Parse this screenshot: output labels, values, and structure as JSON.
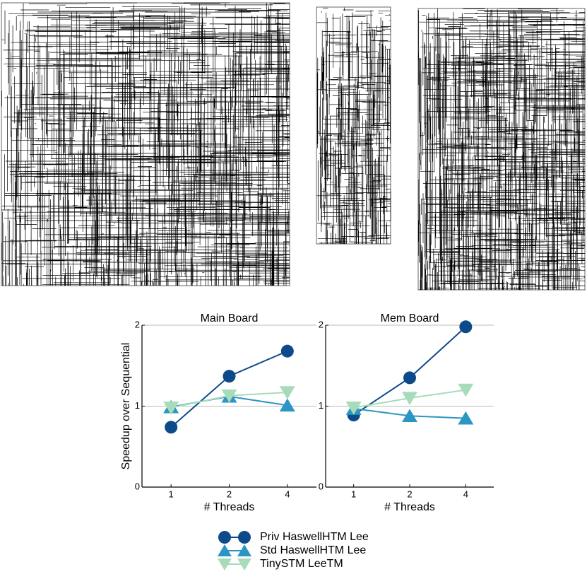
{
  "chart_data": [
    {
      "type": "line",
      "title": "Main Board",
      "x_label": "# Threads",
      "y_label": "Speedup over Sequential",
      "categories": [
        "1",
        "2",
        "4"
      ],
      "ylim": [
        0,
        2
      ],
      "yticks": [
        0,
        1,
        2
      ],
      "grid": true,
      "series": [
        {
          "name": "Priv HaswellHTM Lee",
          "color": "#0d4a8a",
          "marker": "circle",
          "values": [
            0.74,
            1.37,
            1.68
          ]
        },
        {
          "name": "Std HaswellHTM Lee",
          "color": "#2b95c4",
          "marker": "triangle-up",
          "values": [
            0.99,
            1.12,
            1.01
          ]
        },
        {
          "name": "TinySTM LeeTM",
          "color": "#a8dbb9",
          "marker": "triangle-down",
          "values": [
            0.98,
            1.13,
            1.17
          ]
        }
      ]
    },
    {
      "type": "line",
      "title": "Mem Board",
      "x_label": "# Threads",
      "categories": [
        "1",
        "2",
        "4"
      ],
      "ylim": [
        0,
        2
      ],
      "yticks": [
        0,
        1,
        2
      ],
      "grid": true,
      "series": [
        {
          "color": "#0d4a8a",
          "marker": "circle",
          "values": [
            0.89,
            1.35,
            1.98
          ]
        },
        {
          "color": "#2b95c4",
          "marker": "triangle-up",
          "values": [
            0.97,
            0.88,
            0.85
          ]
        },
        {
          "color": "#a8dbb9",
          "marker": "triangle-down",
          "values": [
            0.98,
            1.1,
            1.2
          ]
        }
      ]
    }
  ]
}
